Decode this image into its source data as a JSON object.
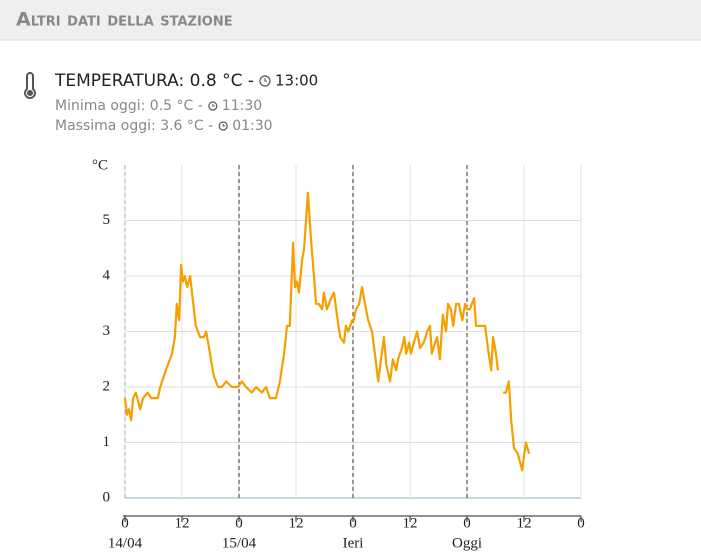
{
  "header": {
    "title": "Altri dati della stazione"
  },
  "current": {
    "text": "TEMPERATURA: 0.8 °C -",
    "time": "13:00"
  },
  "minimum": {
    "text": "Minima oggi: 0.5 °C -",
    "time": "11:30"
  },
  "maximum": {
    "text": "Massima oggi: 3.6 °C -",
    "time": "01:30"
  },
  "chart_data": {
    "type": "line",
    "y_label": "°C",
    "x": [
      0,
      0.4,
      0.8,
      1.3,
      1.7,
      2.3,
      3.2,
      3.8,
      4.8,
      5.5,
      6.9,
      7.4,
      8.6,
      9.9,
      10.5,
      10.9,
      11.4,
      11.8,
      12.2,
      12.6,
      13.1,
      13.7,
      14.1,
      14.9,
      15.8,
      16.6,
      17.1,
      17.9,
      18.7,
      19.6,
      20.4,
      21.3,
      22.5,
      23.8,
      24.6,
      25.5,
      26.7,
      27.6,
      28.8,
      29.7,
      30.5,
      31.8,
      32.6,
      33.5,
      34.1,
      34.7,
      35.4,
      35.8,
      36.2,
      36.6,
      37.3,
      37.7,
      38.5,
      39.2,
      39.8,
      40.2,
      40.8,
      41.5,
      41.9,
      42.5,
      43.4,
      44.0,
      44.6,
      45.3,
      46.1,
      46.5,
      47.0,
      47.8,
      48.2,
      48.6,
      49.3,
      49.9,
      50.3,
      51.2,
      52.0,
      52.6,
      53.3,
      53.9,
      54.5,
      55.0,
      55.8,
      56.4,
      57.1,
      57.5,
      58.3,
      58.8,
      59.2,
      59.8,
      60.2,
      60.8,
      61.5,
      62.1,
      62.9,
      63.6,
      64.2,
      64.6,
      65.3,
      65.7,
      66.3,
      66.9,
      67.6,
      68.0,
      68.6,
      69.1,
      69.7,
      70.3,
      71.0,
      71.6,
      72.0,
      72.6,
      73.5,
      73.9,
      74.7,
      75.8,
      76.4,
      77.1,
      77.5,
      78.1,
      78.5,
      79.0,
      79.6,
      80.2,
      80.8,
      81.3,
      81.9,
      82.7,
      83.6,
      84.4,
      85.1
    ],
    "series": [
      {
        "name": "Temperatura",
        "color": "#f5a000",
        "values": [
          1.8,
          1.5,
          1.6,
          1.4,
          1.8,
          1.9,
          1.6,
          1.8,
          1.9,
          1.8,
          1.8,
          2.0,
          2.3,
          2.6,
          2.9,
          3.5,
          3.2,
          4.2,
          3.9,
          4.0,
          3.8,
          4.0,
          3.7,
          3.1,
          2.9,
          2.9,
          3.0,
          2.6,
          2.2,
          2.0,
          2.0,
          2.1,
          2.0,
          2.0,
          2.1,
          2.0,
          1.9,
          2.0,
          1.9,
          2.0,
          1.8,
          1.8,
          2.1,
          2.6,
          3.1,
          3.1,
          4.6,
          3.8,
          3.9,
          3.7,
          4.3,
          4.5,
          5.5,
          4.6,
          4.0,
          3.5,
          3.5,
          3.4,
          3.7,
          3.4,
          3.6,
          3.7,
          3.3,
          2.9,
          2.8,
          3.1,
          3.0,
          3.2,
          3.2,
          3.4,
          3.5,
          3.8,
          3.6,
          3.2,
          3.0,
          2.6,
          2.1,
          2.5,
          2.9,
          2.4,
          2.1,
          2.5,
          2.3,
          2.5,
          2.7,
          2.9,
          2.6,
          2.8,
          2.6,
          2.8,
          3.0,
          2.7,
          2.8,
          3.0,
          3.1,
          2.6,
          2.8,
          2.9,
          2.5,
          3.3,
          3.0,
          3.5,
          3.4,
          3.1,
          3.5,
          3.5,
          3.2,
          3.5,
          3.4,
          3.4,
          3.6,
          3.1,
          3.1,
          3.1,
          2.7,
          2.3,
          2.9,
          2.6,
          2.3,
          null,
          1.9,
          1.9,
          2.1,
          1.4,
          0.9,
          0.8,
          0.5,
          1.0,
          0.8
        ]
      }
    ],
    "xlim": [
      0,
      96
    ],
    "xticks": [
      0,
      12,
      {
        "value": 24,
        "label": "0"
      },
      {
        "value": 36,
        "label": "12"
      },
      {
        "value": 48,
        "label": "0"
      },
      {
        "value": 60,
        "label": "12"
      },
      {
        "value": 72,
        "label": "0"
      },
      {
        "value": 84,
        "label": "12"
      },
      {
        "value": 96,
        "label": "0"
      }
    ],
    "day_markers": [
      {
        "value": 0,
        "label": "14/04"
      },
      {
        "value": 24,
        "label": "15/04"
      },
      {
        "value": 48,
        "label": "Ieri"
      },
      {
        "value": 72,
        "label": "Oggi"
      }
    ],
    "ylim": [
      0,
      6
    ],
    "yticks": [
      0,
      1,
      2,
      3,
      4,
      5
    ],
    "grid": true
  }
}
